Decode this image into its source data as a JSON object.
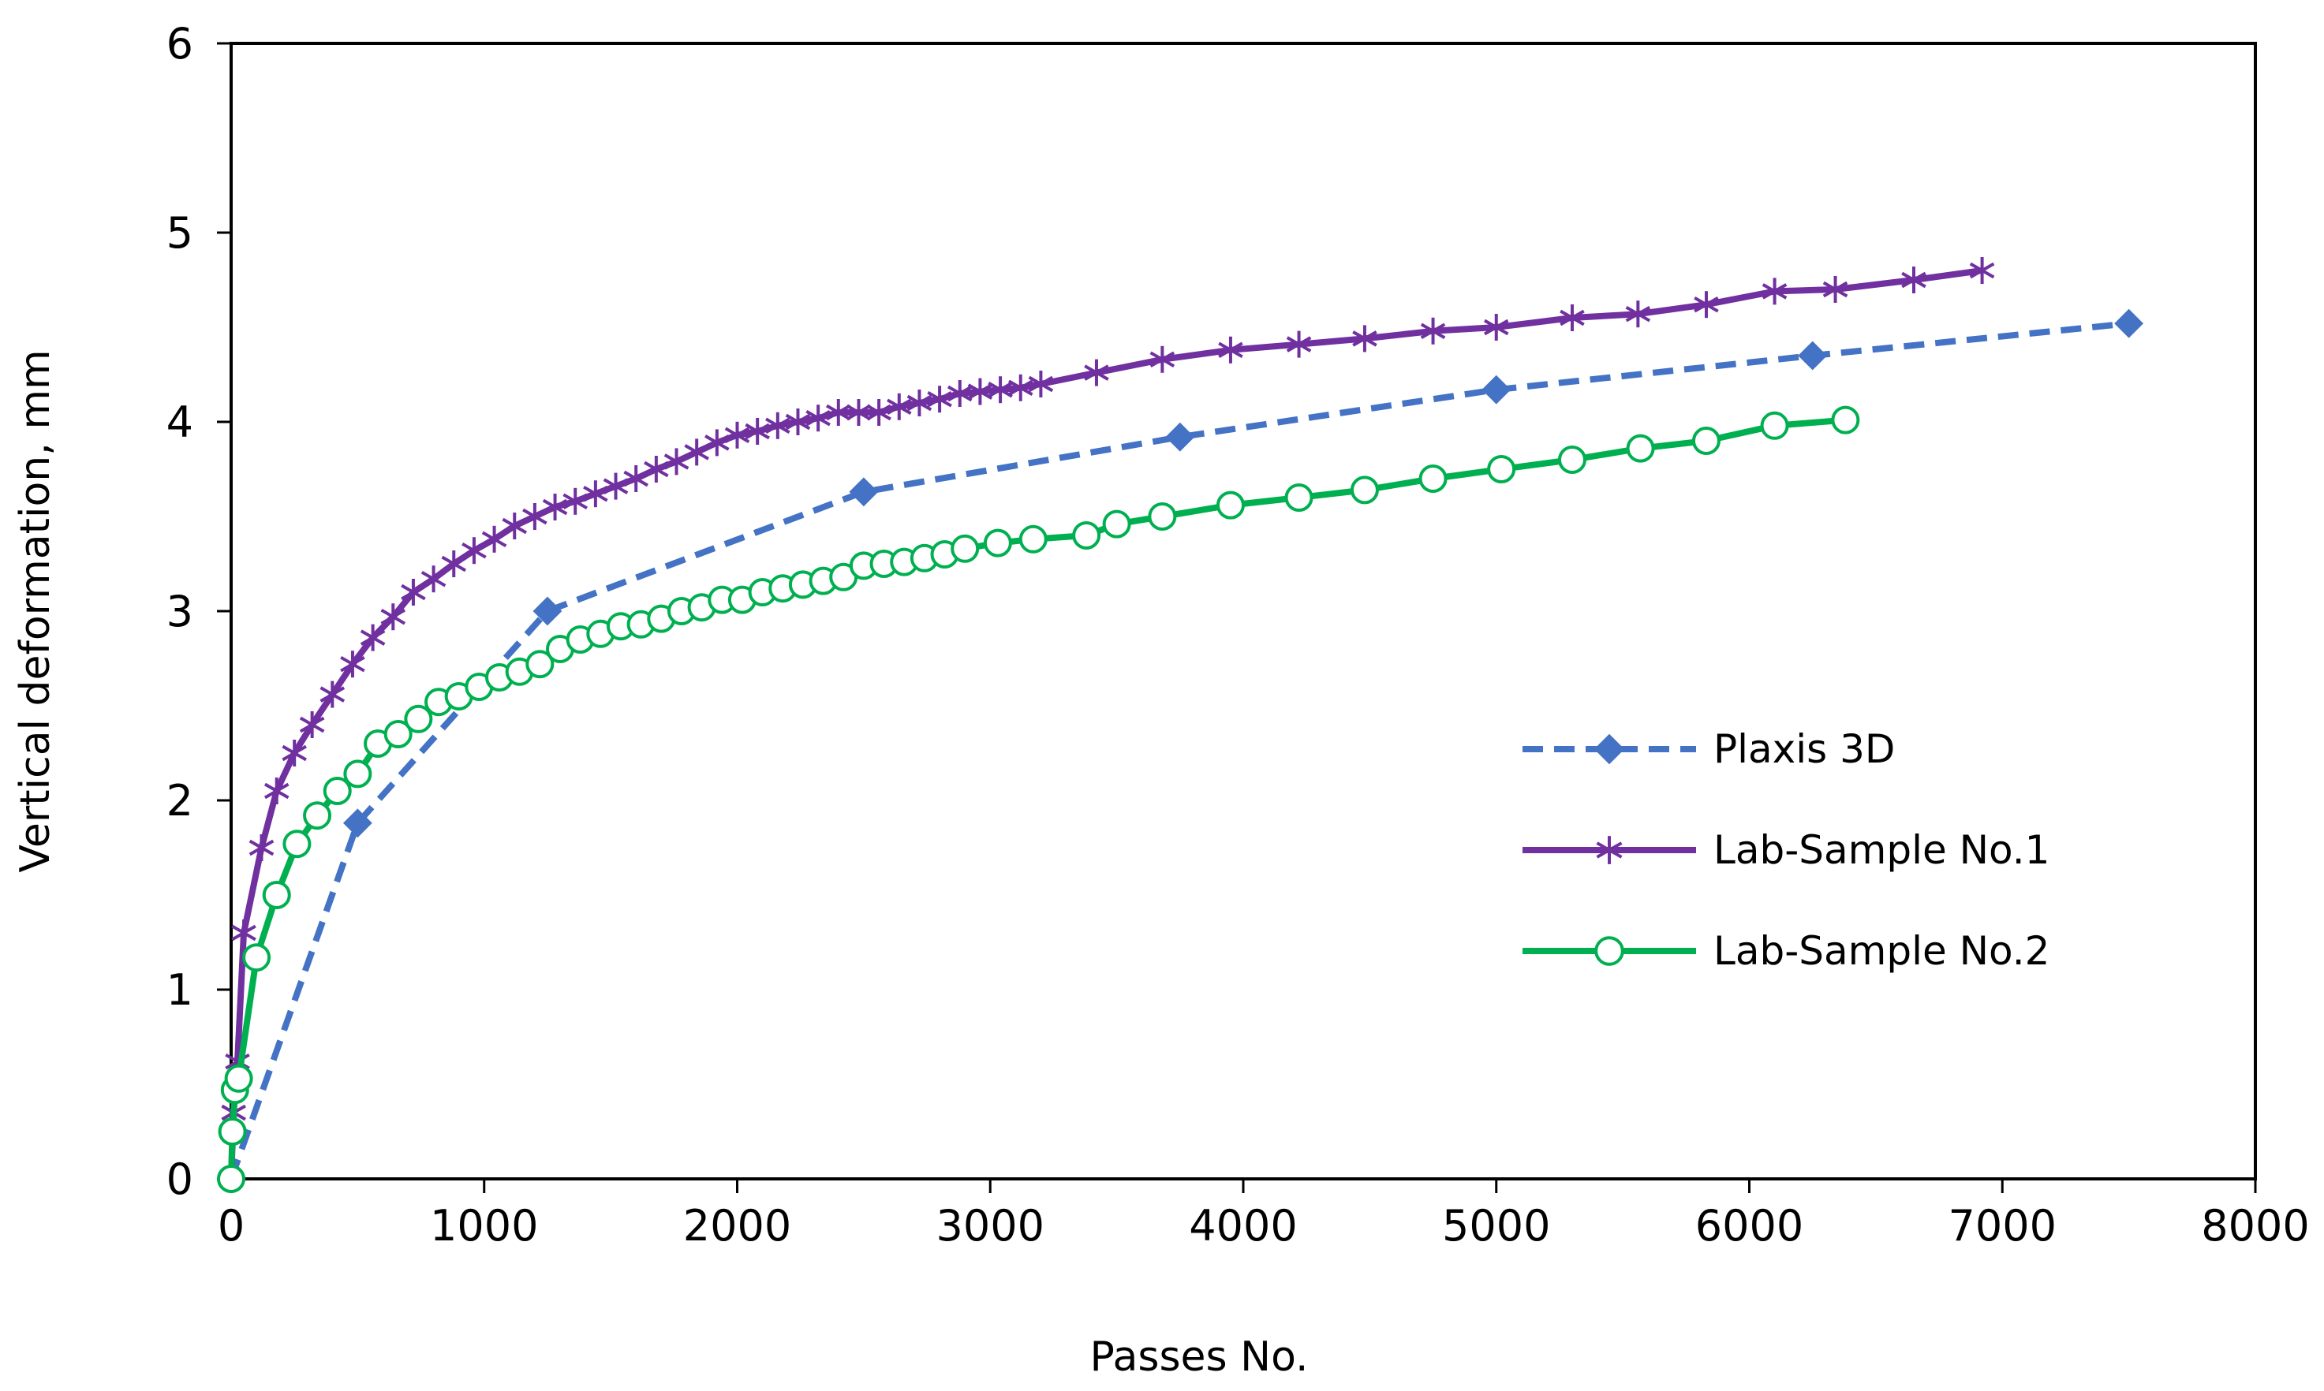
{
  "chart_data": {
    "type": "line",
    "title": "",
    "xlabel": "Passes No.",
    "ylabel": "Vertical deformation, mm",
    "xlim": [
      0,
      8000
    ],
    "ylim": [
      0,
      6
    ],
    "x_ticks": [
      0,
      1000,
      2000,
      3000,
      4000,
      5000,
      6000,
      7000,
      8000
    ],
    "y_ticks": [
      0,
      1,
      2,
      3,
      4,
      5,
      6
    ],
    "grid": false,
    "legend_position": "right-center",
    "series": [
      {
        "name": "Plaxis 3D",
        "color": "#4472C4",
        "line_style": "dashed",
        "marker": "diamond",
        "x": [
          0,
          500,
          1250,
          2500,
          3750,
          5000,
          6250,
          7500
        ],
        "y": [
          0,
          1.88,
          3.0,
          3.63,
          3.92,
          4.17,
          4.35,
          4.52
        ]
      },
      {
        "name": "Lab-Sample No.1",
        "color": "#7030A0",
        "line_style": "solid",
        "marker": "asterisk",
        "x": [
          0,
          10,
          25,
          50,
          120,
          180,
          250,
          320,
          400,
          480,
          560,
          640,
          720,
          800,
          880,
          960,
          1040,
          1120,
          1200,
          1280,
          1360,
          1440,
          1520,
          1600,
          1680,
          1760,
          1840,
          1920,
          2000,
          2080,
          2160,
          2240,
          2320,
          2400,
          2480,
          2560,
          2640,
          2720,
          2800,
          2880,
          2960,
          3040,
          3120,
          3200,
          3420,
          3680,
          3950,
          4220,
          4480,
          4750,
          5000,
          5300,
          5560,
          5830,
          6100,
          6340,
          6650,
          6920
        ],
        "y": [
          0,
          0.35,
          0.62,
          1.3,
          1.75,
          2.05,
          2.25,
          2.4,
          2.56,
          2.72,
          2.86,
          2.97,
          3.1,
          3.17,
          3.25,
          3.32,
          3.38,
          3.45,
          3.5,
          3.55,
          3.58,
          3.62,
          3.66,
          3.7,
          3.75,
          3.79,
          3.84,
          3.89,
          3.93,
          3.95,
          3.98,
          4.0,
          4.02,
          4.05,
          4.05,
          4.05,
          4.08,
          4.1,
          4.12,
          4.15,
          4.16,
          4.17,
          4.18,
          4.2,
          4.26,
          4.33,
          4.38,
          4.41,
          4.44,
          4.48,
          4.5,
          4.55,
          4.57,
          4.62,
          4.69,
          4.7,
          4.75,
          4.8
        ]
      },
      {
        "name": "Lab-Sample No.2",
        "color": "#00B050",
        "line_style": "solid",
        "marker": "circle",
        "x": [
          0,
          5,
          15,
          30,
          100,
          180,
          260,
          340,
          420,
          500,
          580,
          660,
          740,
          820,
          900,
          980,
          1060,
          1140,
          1220,
          1300,
          1380,
          1460,
          1540,
          1620,
          1700,
          1780,
          1860,
          1940,
          2020,
          2100,
          2180,
          2260,
          2340,
          2420,
          2500,
          2580,
          2660,
          2740,
          2820,
          2900,
          3030,
          3170,
          3380,
          3500,
          3680,
          3950,
          4220,
          4480,
          4750,
          5020,
          5300,
          5570,
          5830,
          6100,
          6380
        ],
        "y": [
          0,
          0.25,
          0.47,
          0.53,
          1.17,
          1.5,
          1.77,
          1.92,
          2.05,
          2.14,
          2.3,
          2.35,
          2.43,
          2.52,
          2.55,
          2.6,
          2.65,
          2.68,
          2.72,
          2.8,
          2.85,
          2.88,
          2.92,
          2.93,
          2.96,
          3.0,
          3.02,
          3.06,
          3.06,
          3.1,
          3.12,
          3.14,
          3.16,
          3.18,
          3.24,
          3.25,
          3.26,
          3.28,
          3.3,
          3.33,
          3.36,
          3.38,
          3.4,
          3.46,
          3.5,
          3.56,
          3.6,
          3.64,
          3.7,
          3.75,
          3.8,
          3.86,
          3.9,
          3.98,
          4.01
        ]
      }
    ]
  }
}
